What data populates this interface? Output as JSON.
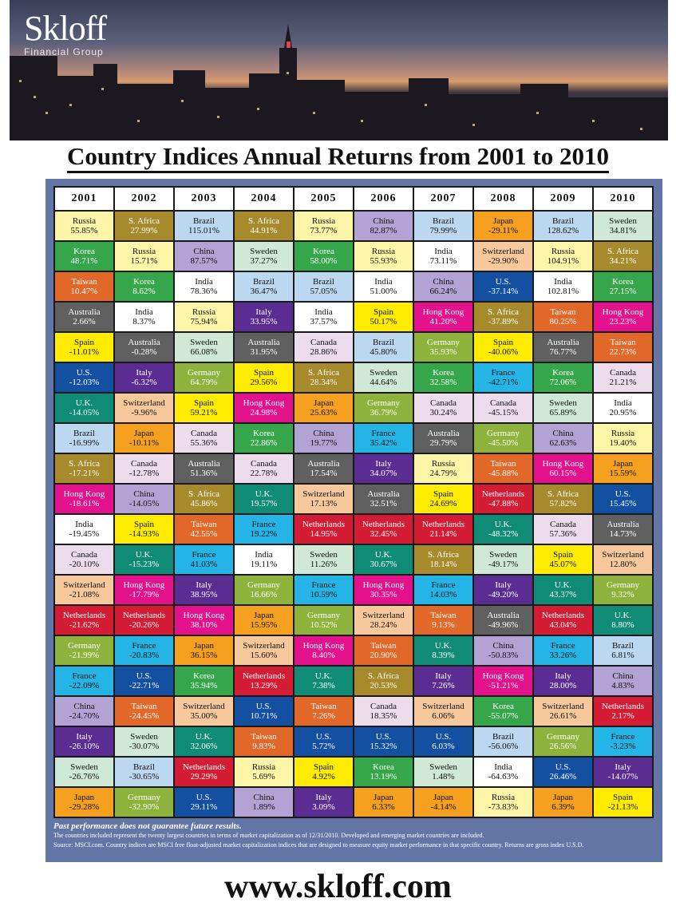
{
  "brand": {
    "name": "Skloff",
    "subtitle": "Financial Group"
  },
  "title": "Country Indices Annual Returns from 2001 to 2010",
  "website": "www.skloff.com",
  "notes": {
    "disclaimer": "Past performance does not guarantee future results.",
    "line1": "The countries included represent the twenty largest countries in terms of market capitalization as of 12/31/2010. Developed and emerging market countries are included.",
    "line2": "Source: MSCI.com. Country indices are MSCI free float-adjusted market capitalization indices that are designed to measure equity market performance in that specific country. Returns are gross index U.S.D."
  },
  "country_colors": {
    "Russia": "#fdf6a8",
    "S. Africa": "#a68a2c",
    "Brazil": "#bcd8f0",
    "China": "#b3a3d4",
    "Japan": "#f6a020",
    "Sweden": "#cfe9d6",
    "Korea": "#36a64a",
    "Switzerland": "#f7c89c",
    "India": "#ffffff",
    "U.S.": "#1350a2",
    "Taiwan": "#e2682a",
    "Australia": "#606060",
    "Italy": "#5b2d92",
    "Spain": "#ffec00",
    "Hong Kong": "#e4118c",
    "Canada": "#ecdcec",
    "Germany": "#8eb33c",
    "U.K.": "#108b75",
    "France": "#24b5e6",
    "Netherlands": "#d41d35"
  },
  "dark_text_countries": [
    "Russia",
    "Brazil",
    "China",
    "Japan",
    "Sweden",
    "Switzerland",
    "India",
    "Spain",
    "Canada",
    "France"
  ],
  "chart_data": {
    "type": "table",
    "title": "Country Indices Annual Returns from 2001 to 2010",
    "years": [
      "2001",
      "2002",
      "2003",
      "2004",
      "2005",
      "2006",
      "2007",
      "2008",
      "2009",
      "2010"
    ],
    "columns": [
      [
        {
          "country": "Russia",
          "return": "55.85%"
        },
        {
          "country": "Korea",
          "return": "48.71%"
        },
        {
          "country": "Taiwan",
          "return": "10.47%"
        },
        {
          "country": "Australia",
          "return": "2.66%"
        },
        {
          "country": "Spain",
          "return": "-11.01%"
        },
        {
          "country": "U.S.",
          "return": "-12.03%"
        },
        {
          "country": "U.K.",
          "return": "-14.05%"
        },
        {
          "country": "Brazil",
          "return": "-16.99%"
        },
        {
          "country": "S. Africa",
          "return": "-17.21%"
        },
        {
          "country": "Hong Kong",
          "return": "-18.61%"
        },
        {
          "country": "India",
          "return": "-19.45%"
        },
        {
          "country": "Canada",
          "return": "-20.10%"
        },
        {
          "country": "Switzerland",
          "return": "-21.08%"
        },
        {
          "country": "Netherlands",
          "return": "-21.62%"
        },
        {
          "country": "Germany",
          "return": "-21.99%"
        },
        {
          "country": "France",
          "return": "-22.09%"
        },
        {
          "country": "China",
          "return": "-24.70%"
        },
        {
          "country": "Italy",
          "return": "-26.10%"
        },
        {
          "country": "Sweden",
          "return": "-26.76%"
        },
        {
          "country": "Japan",
          "return": "-29.28%"
        }
      ],
      [
        {
          "country": "S. Africa",
          "return": "27.99%"
        },
        {
          "country": "Russia",
          "return": "15.71%"
        },
        {
          "country": "Korea",
          "return": "8.62%"
        },
        {
          "country": "India",
          "return": "8.37%"
        },
        {
          "country": "Australia",
          "return": "-0.28%"
        },
        {
          "country": "Italy",
          "return": "-6.32%"
        },
        {
          "country": "Switzerland",
          "return": "-9.96%"
        },
        {
          "country": "Japan",
          "return": "-10.11%"
        },
        {
          "country": "Canada",
          "return": "-12.78%"
        },
        {
          "country": "China",
          "return": "-14.05%"
        },
        {
          "country": "Spain",
          "return": "-14.93%"
        },
        {
          "country": "U.K.",
          "return": "-15.23%"
        },
        {
          "country": "Hong Kong",
          "return": "-17.79%"
        },
        {
          "country": "Netherlands",
          "return": "-20.26%"
        },
        {
          "country": "France",
          "return": "-20.83%"
        },
        {
          "country": "U.S.",
          "return": "-22.71%"
        },
        {
          "country": "Taiwan",
          "return": "-24.45%"
        },
        {
          "country": "Sweden",
          "return": "-30.07%"
        },
        {
          "country": "Brazil",
          "return": "-30.65%"
        },
        {
          "country": "Germany",
          "return": "-32.90%"
        }
      ],
      [
        {
          "country": "Brazil",
          "return": "115.01%"
        },
        {
          "country": "China",
          "return": "87.57%"
        },
        {
          "country": "India",
          "return": "78.36%"
        },
        {
          "country": "Russia",
          "return": "75.94%"
        },
        {
          "country": "Sweden",
          "return": "66.08%"
        },
        {
          "country": "Germany",
          "return": "64.79%"
        },
        {
          "country": "Spain",
          "return": "59.21%"
        },
        {
          "country": "Canada",
          "return": "55.36%"
        },
        {
          "country": "Australia",
          "return": "51.36%"
        },
        {
          "country": "S. Africa",
          "return": "45.86%"
        },
        {
          "country": "Taiwan",
          "return": "42.55%"
        },
        {
          "country": "France",
          "return": "41.03%"
        },
        {
          "country": "Italy",
          "return": "38.95%"
        },
        {
          "country": "Hong Kong",
          "return": "38.10%"
        },
        {
          "country": "Japan",
          "return": "36.15%"
        },
        {
          "country": "Korea",
          "return": "35.94%"
        },
        {
          "country": "Switzerland",
          "return": "35.00%"
        },
        {
          "country": "U.K.",
          "return": "32.06%"
        },
        {
          "country": "Netherlands",
          "return": "29.29%"
        },
        {
          "country": "U.S.",
          "return": "29.11%"
        }
      ],
      [
        {
          "country": "S. Africa",
          "return": "44.91%"
        },
        {
          "country": "Sweden",
          "return": "37.27%"
        },
        {
          "country": "Brazil",
          "return": "36.47%"
        },
        {
          "country": "Italy",
          "return": "33.95%"
        },
        {
          "country": "Australia",
          "return": "31.95%"
        },
        {
          "country": "Spain",
          "return": "29.56%"
        },
        {
          "country": "Hong Kong",
          "return": "24.98%"
        },
        {
          "country": "Korea",
          "return": "22.86%"
        },
        {
          "country": "Canada",
          "return": "22.78%"
        },
        {
          "country": "U.K.",
          "return": "19.57%"
        },
        {
          "country": "France",
          "return": "19.22%"
        },
        {
          "country": "India",
          "return": "19.11%"
        },
        {
          "country": "Germany",
          "return": "16.66%"
        },
        {
          "country": "Japan",
          "return": "15.95%"
        },
        {
          "country": "Switzerland",
          "return": "15.60%"
        },
        {
          "country": "Netherlands",
          "return": "13.29%"
        },
        {
          "country": "U.S.",
          "return": "10.71%"
        },
        {
          "country": "Taiwan",
          "return": "9.83%"
        },
        {
          "country": "Russia",
          "return": "5.69%"
        },
        {
          "country": "China",
          "return": "1.89%"
        }
      ],
      [
        {
          "country": "Russia",
          "return": "73.77%"
        },
        {
          "country": "Korea",
          "return": "58.00%"
        },
        {
          "country": "Brazil",
          "return": "57.05%"
        },
        {
          "country": "India",
          "return": "37.57%"
        },
        {
          "country": "Canada",
          "return": "28.86%"
        },
        {
          "country": "S. Africa",
          "return": "28.34%"
        },
        {
          "country": "Japan",
          "return": "25.63%"
        },
        {
          "country": "China",
          "return": "19.77%"
        },
        {
          "country": "Australia",
          "return": "17.54%"
        },
        {
          "country": "Switzerland",
          "return": "17.13%"
        },
        {
          "country": "Netherlands",
          "return": "14.95%"
        },
        {
          "country": "Sweden",
          "return": "11.26%"
        },
        {
          "country": "France",
          "return": "10.59%"
        },
        {
          "country": "Germany",
          "return": "10.52%"
        },
        {
          "country": "Hong Kong",
          "return": "8.40%"
        },
        {
          "country": "U.K.",
          "return": "7.38%"
        },
        {
          "country": "Taiwan",
          "return": "7.26%"
        },
        {
          "country": "U.S.",
          "return": "5.72%"
        },
        {
          "country": "Spain",
          "return": "4.92%"
        },
        {
          "country": "Italy",
          "return": "3.09%"
        }
      ],
      [
        {
          "country": "China",
          "return": "82.87%"
        },
        {
          "country": "Russia",
          "return": "55.93%"
        },
        {
          "country": "India",
          "return": "51.00%"
        },
        {
          "country": "Spain",
          "return": "50.17%"
        },
        {
          "country": "Brazil",
          "return": "45.80%"
        },
        {
          "country": "Sweden",
          "return": "44.64%"
        },
        {
          "country": "Germany",
          "return": "36.79%"
        },
        {
          "country": "France",
          "return": "35.42%"
        },
        {
          "country": "Italy",
          "return": "34.07%"
        },
        {
          "country": "Australia",
          "return": "32.51%"
        },
        {
          "country": "Netherlands",
          "return": "32.45%"
        },
        {
          "country": "U.K.",
          "return": "30.67%"
        },
        {
          "country": "Hong Kong",
          "return": "30.35%"
        },
        {
          "country": "Switzerland",
          "return": "28.24%"
        },
        {
          "country": "Taiwan",
          "return": "20.90%"
        },
        {
          "country": "S. Africa",
          "return": "20.53%"
        },
        {
          "country": "Canada",
          "return": "18.35%"
        },
        {
          "country": "U.S.",
          "return": "15.32%"
        },
        {
          "country": "Korea",
          "return": "13.19%"
        },
        {
          "country": "Japan",
          "return": "6.33%"
        }
      ],
      [
        {
          "country": "Brazil",
          "return": "79.99%"
        },
        {
          "country": "India",
          "return": "73.11%"
        },
        {
          "country": "China",
          "return": "66.24%"
        },
        {
          "country": "Hong Kong",
          "return": "41.20%"
        },
        {
          "country": "Germany",
          "return": "35.93%"
        },
        {
          "country": "Korea",
          "return": "32.58%"
        },
        {
          "country": "Canada",
          "return": "30.24%"
        },
        {
          "country": "Australia",
          "return": "29.79%"
        },
        {
          "country": "Russia",
          "return": "24.79%"
        },
        {
          "country": "Spain",
          "return": "24.69%"
        },
        {
          "country": "Netherlands",
          "return": "21.14%"
        },
        {
          "country": "S. Africa",
          "return": "18.14%"
        },
        {
          "country": "France",
          "return": "14.03%"
        },
        {
          "country": "Taiwan",
          "return": "9.13%"
        },
        {
          "country": "U.K.",
          "return": "8.39%"
        },
        {
          "country": "Italy",
          "return": "7.26%"
        },
        {
          "country": "Switzerland",
          "return": "6.06%"
        },
        {
          "country": "U.S.",
          "return": "6.03%"
        },
        {
          "country": "Sweden",
          "return": "1.48%"
        },
        {
          "country": "Japan",
          "return": "-4.14%"
        }
      ],
      [
        {
          "country": "Japan",
          "return": "-29.11%"
        },
        {
          "country": "Switzerland",
          "return": "-29.90%"
        },
        {
          "country": "U.S.",
          "return": "-37.14%"
        },
        {
          "country": "S. Africa",
          "return": "-37.89%"
        },
        {
          "country": "Spain",
          "return": "-40.06%"
        },
        {
          "country": "France",
          "return": "-42.71%"
        },
        {
          "country": "Canada",
          "return": "-45.15%"
        },
        {
          "country": "Germany",
          "return": "-45.50%"
        },
        {
          "country": "Taiwan",
          "return": "-45.88%"
        },
        {
          "country": "Netherlands",
          "return": "-47.88%"
        },
        {
          "country": "U.K.",
          "return": "-48.32%"
        },
        {
          "country": "Sweden",
          "return": "-49.17%"
        },
        {
          "country": "Italy",
          "return": "-49.20%"
        },
        {
          "country": "Australia",
          "return": "-49.96%"
        },
        {
          "country": "China",
          "return": "-50.83%"
        },
        {
          "country": "Hong Kong",
          "return": "-51.21%"
        },
        {
          "country": "Korea",
          "return": "-55.07%"
        },
        {
          "country": "Brazil",
          "return": "-56.06%"
        },
        {
          "country": "India",
          "return": "-64.63%"
        },
        {
          "country": "Russia",
          "return": "-73.83%"
        }
      ],
      [
        {
          "country": "Brazil",
          "return": "128.62%"
        },
        {
          "country": "Russia",
          "return": "104.91%"
        },
        {
          "country": "India",
          "return": "102.81%"
        },
        {
          "country": "Taiwan",
          "return": "80.25%"
        },
        {
          "country": "Australia",
          "return": "76.77%"
        },
        {
          "country": "Korea",
          "return": "72.06%"
        },
        {
          "country": "Sweden",
          "return": "65.89%"
        },
        {
          "country": "China",
          "return": "62.63%"
        },
        {
          "country": "Hong Kong",
          "return": "60.15%"
        },
        {
          "country": "S. Africa",
          "return": "57.82%"
        },
        {
          "country": "Canada",
          "return": "57.36%"
        },
        {
          "country": "Spain",
          "return": "45.07%"
        },
        {
          "country": "U.K.",
          "return": "43.37%"
        },
        {
          "country": "Netherlands",
          "return": "43.04%"
        },
        {
          "country": "France",
          "return": "33.26%"
        },
        {
          "country": "Italy",
          "return": "28.00%"
        },
        {
          "country": "Switzerland",
          "return": "26.61%"
        },
        {
          "country": "Germany",
          "return": "26.56%"
        },
        {
          "country": "U.S.",
          "return": "26.46%"
        },
        {
          "country": "Japan",
          "return": "6.39%"
        }
      ],
      [
        {
          "country": "Sweden",
          "return": "34.81%"
        },
        {
          "country": "S. Africa",
          "return": "34.21%"
        },
        {
          "country": "Korea",
          "return": "27.15%"
        },
        {
          "country": "Hong Kong",
          "return": "23.23%"
        },
        {
          "country": "Taiwan",
          "return": "22.73%"
        },
        {
          "country": "Canada",
          "return": "21.21%"
        },
        {
          "country": "India",
          "return": "20.95%"
        },
        {
          "country": "Russia",
          "return": "19.40%"
        },
        {
          "country": "Japan",
          "return": "15.59%"
        },
        {
          "country": "U.S.",
          "return": "15.45%"
        },
        {
          "country": "Australia",
          "return": "14.73%"
        },
        {
          "country": "Switzerland",
          "return": "12.80%"
        },
        {
          "country": "Germany",
          "return": "9.32%"
        },
        {
          "country": "U.K.",
          "return": "8.80%"
        },
        {
          "country": "Brazil",
          "return": "6.81%"
        },
        {
          "country": "China",
          "return": "4.83%"
        },
        {
          "country": "Netherlands",
          "return": "2.17%"
        },
        {
          "country": "France",
          "return": "-3.23%"
        },
        {
          "country": "Italy",
          "return": "-14.07%"
        },
        {
          "country": "Spain",
          "return": "-21.13%"
        }
      ]
    ]
  }
}
